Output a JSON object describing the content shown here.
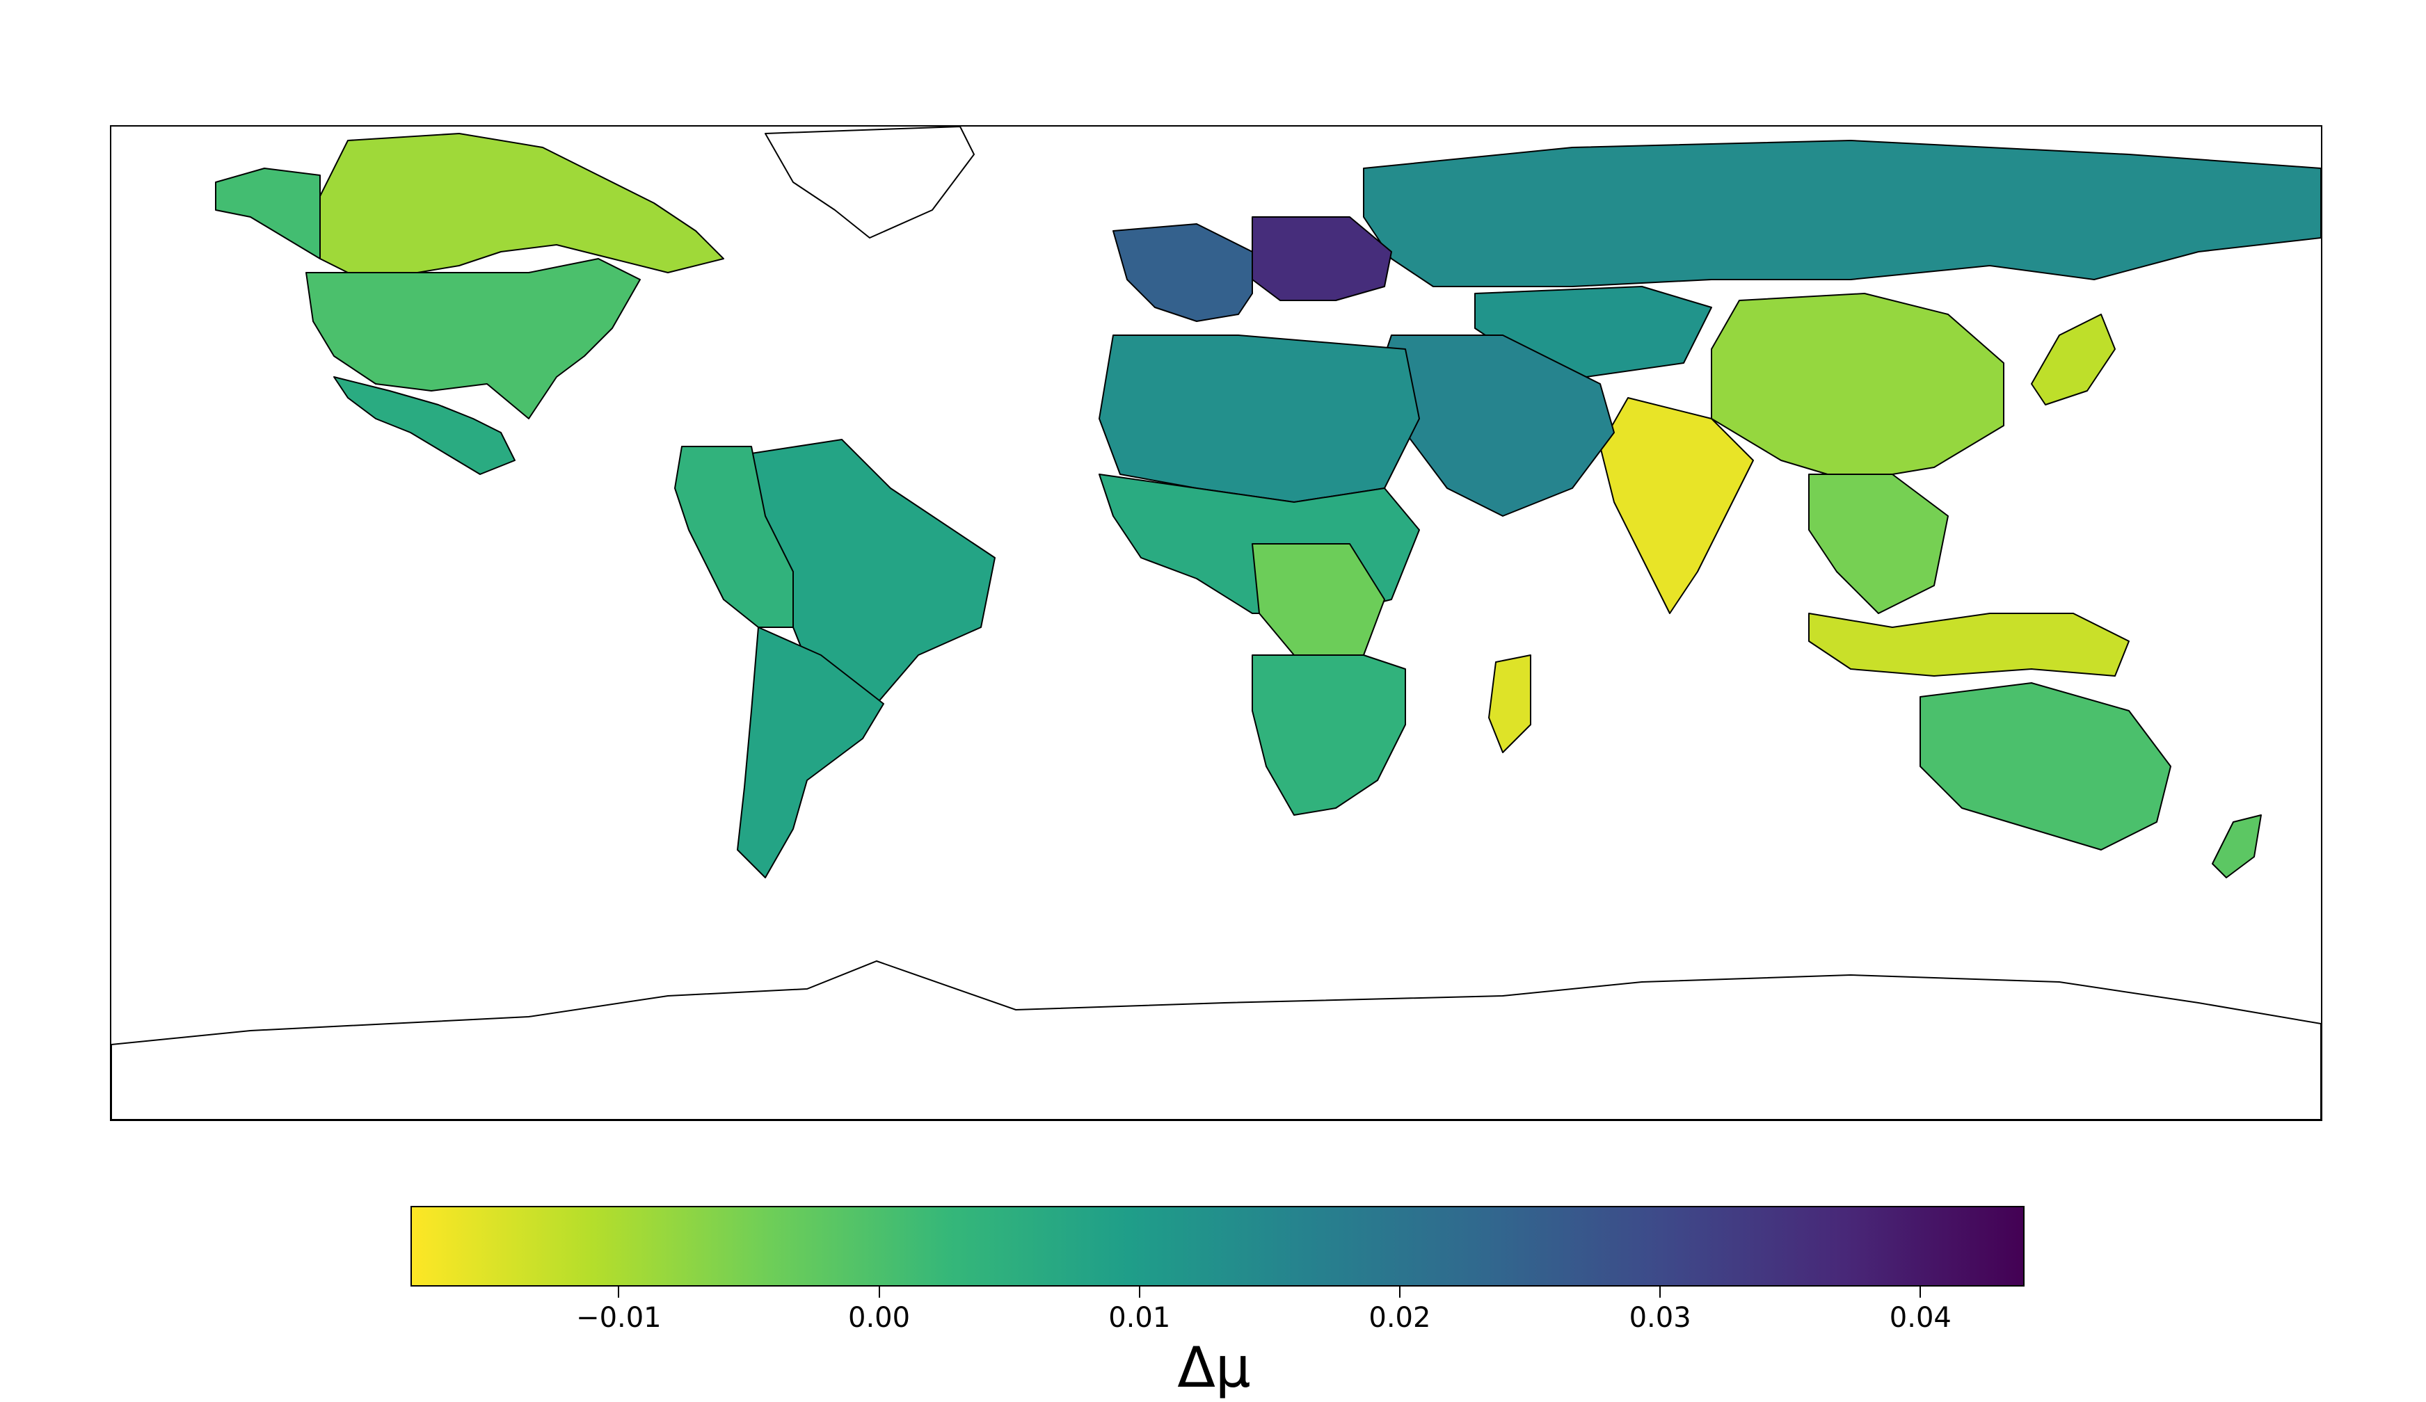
{
  "colorbar": {
    "label": "Δμ",
    "min": -0.018,
    "max": 0.044,
    "ticks": [
      {
        "value": -0.01,
        "label": "−0.01"
      },
      {
        "value": 0.0,
        "label": "0.00"
      },
      {
        "value": 0.01,
        "label": "0.01"
      },
      {
        "value": 0.02,
        "label": "0.02"
      },
      {
        "value": 0.03,
        "label": "0.03"
      },
      {
        "value": 0.04,
        "label": "0.04"
      }
    ],
    "colormap": "viridis_r",
    "stops": [
      "#fde725",
      "#b5de2b",
      "#6ece58",
      "#35b779",
      "#1f9e89",
      "#26828e",
      "#31688e",
      "#3e4989",
      "#482878",
      "#440154"
    ]
  },
  "map": {
    "projection": "plate-carree",
    "regions": [
      {
        "name": "Canada",
        "value": -0.009
      },
      {
        "name": "Alaska",
        "value": 0.001
      },
      {
        "name": "United States",
        "value": 0.0
      },
      {
        "name": "Mexico",
        "value": 0.006
      },
      {
        "name": "Greenland",
        "value": null
      },
      {
        "name": "Brazil",
        "value": 0.008
      },
      {
        "name": "South America West",
        "value": 0.004
      },
      {
        "name": "Argentina",
        "value": 0.008
      },
      {
        "name": "Russia",
        "value": 0.014
      },
      {
        "name": "Central Europe",
        "value": 0.036
      },
      {
        "name": "Western Europe",
        "value": 0.025
      },
      {
        "name": "Kazakhstan",
        "value": 0.012
      },
      {
        "name": "China",
        "value": -0.008
      },
      {
        "name": "India",
        "value": -0.016
      },
      {
        "name": "Southeast Asia",
        "value": -0.005
      },
      {
        "name": "Middle East",
        "value": 0.016
      },
      {
        "name": "North Africa",
        "value": 0.013
      },
      {
        "name": "Sub-Saharan Africa",
        "value": 0.006
      },
      {
        "name": "Central Africa",
        "value": -0.004
      },
      {
        "name": "Southern Africa",
        "value": 0.004
      },
      {
        "name": "Madagascar",
        "value": -0.015
      },
      {
        "name": "Australia",
        "value": 0.0
      },
      {
        "name": "New Zealand",
        "value": -0.002
      },
      {
        "name": "Indonesia",
        "value": -0.013
      },
      {
        "name": "Japan",
        "value": -0.012
      },
      {
        "name": "Antarctica",
        "value": null
      }
    ]
  }
}
